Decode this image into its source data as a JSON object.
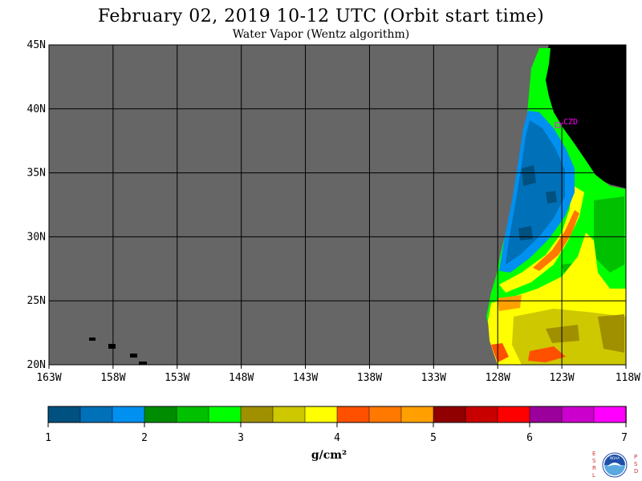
{
  "title": "February 02, 2019  10-12 UTC  (Orbit start time)",
  "subtitle": "Water Vapor (Wentz algorithm)",
  "map": {
    "lat_ticks": [
      "45N",
      "40N",
      "35N",
      "30N",
      "25N",
      "20N"
    ],
    "lon_ticks": [
      "163W",
      "158W",
      "153W",
      "148W",
      "143W",
      "138W",
      "133W",
      "128W",
      "123W",
      "118W"
    ],
    "station": "CZD",
    "colors": {
      "no_data": "#666666",
      "land": "#000000",
      "grid": "#000000",
      "station": "#ff00ff"
    }
  },
  "colorbar": {
    "unit": "g/cm²",
    "tick_labels": [
      "1",
      "2",
      "3",
      "4",
      "5",
      "6",
      "7"
    ],
    "colors": [
      "#005080",
      "#0070b8",
      "#0090f0",
      "#008c00",
      "#00c000",
      "#00ff00",
      "#a09000",
      "#cdc800",
      "#ffff00",
      "#ff5000",
      "#ff7800",
      "#ffa000",
      "#900000",
      "#c80000",
      "#ff0000",
      "#9c009c",
      "#cc00cc",
      "#ff00ff"
    ]
  },
  "logo": {
    "left_letters": "ESRL",
    "right_letters": "PSD",
    "emblem": "NOAA"
  }
}
